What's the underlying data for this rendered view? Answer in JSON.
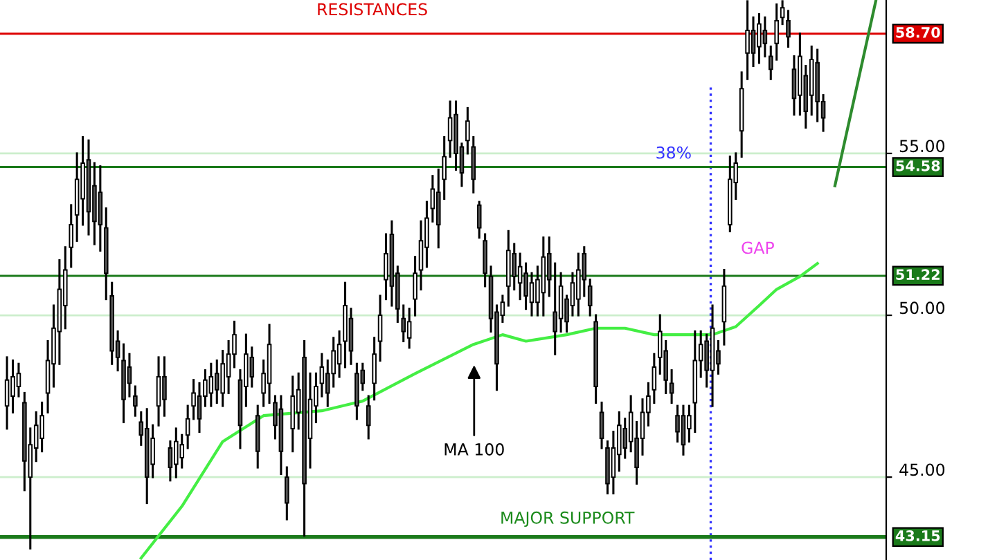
{
  "chart_data": {
    "type": "candlestick",
    "categories": [
      null,
      null,
      null,
      null,
      null,
      null,
      null,
      null,
      null,
      null,
      null,
      null,
      null,
      null,
      null,
      null,
      null,
      null,
      null,
      null,
      null,
      null,
      null,
      null,
      null,
      null,
      null,
      null,
      null,
      null,
      null,
      null,
      null,
      null,
      null,
      null,
      null,
      null,
      null,
      null,
      null,
      null,
      null,
      null,
      null,
      null,
      null,
      null,
      null,
      null,
      null,
      null,
      null,
      null,
      null,
      null,
      null,
      null,
      null,
      null,
      null,
      null,
      null,
      null,
      null,
      null,
      null,
      null,
      null,
      null,
      null,
      null,
      null,
      null,
      null,
      null,
      null,
      null,
      null,
      null,
      null,
      null,
      null,
      null,
      null,
      null,
      null,
      null,
      null,
      null,
      null,
      null,
      null,
      null,
      null,
      null,
      null,
      null,
      null,
      null,
      null,
      null,
      null,
      null,
      null,
      null,
      null,
      null,
      null,
      null,
      null,
      null,
      null,
      null,
      null,
      null,
      null,
      null,
      null,
      null,
      null,
      null,
      null,
      null,
      null,
      null,
      null,
      null,
      null,
      null,
      null,
      null,
      null,
      null,
      null,
      null,
      null,
      null,
      null,
      null,
      null,
      null,
      null,
      null,
      null,
      null,
      null,
      null,
      null,
      null,
      null
    ],
    "ohlc": [
      [
        47.2,
        48.7,
        46.5,
        48.0
      ],
      [
        47.5,
        48.6,
        47.0,
        48.1
      ],
      [
        47.8,
        48.5,
        47.5,
        48.2
      ],
      [
        47.3,
        47.6,
        44.6,
        45.5
      ],
      [
        45.0,
        46.5,
        42.8,
        46.0
      ],
      [
        45.9,
        47.0,
        45.5,
        46.6
      ],
      [
        46.2,
        47.3,
        45.8,
        46.9
      ],
      [
        47.6,
        49.2,
        47.0,
        48.6
      ],
      [
        48.5,
        50.3,
        47.8,
        49.6
      ],
      [
        49.5,
        51.7,
        48.5,
        50.8
      ],
      [
        50.3,
        52.1,
        49.6,
        51.4
      ],
      [
        52.1,
        53.4,
        51.5,
        52.8
      ],
      [
        53.1,
        55.0,
        52.3,
        54.2
      ],
      [
        53.6,
        55.5,
        52.8,
        54.7
      ],
      [
        54.8,
        55.4,
        52.5,
        53.2
      ],
      [
        54.0,
        54.7,
        52.2,
        52.9
      ],
      [
        53.8,
        54.6,
        52.0,
        52.8
      ],
      [
        52.7,
        53.3,
        50.5,
        51.3
      ],
      [
        50.6,
        51.0,
        48.5,
        48.9
      ],
      [
        49.2,
        49.5,
        48.3,
        48.7
      ],
      [
        48.6,
        49.1,
        46.7,
        47.4
      ],
      [
        48.4,
        48.8,
        47.5,
        47.9
      ],
      [
        47.5,
        47.8,
        46.9,
        47.2
      ],
      [
        46.7,
        47.0,
        46.0,
        46.3
      ],
      [
        46.5,
        47.1,
        44.2,
        45.0
      ],
      [
        45.4,
        46.6,
        45.0,
        46.2
      ],
      [
        47.2,
        48.7,
        46.6,
        48.1
      ],
      [
        48.1,
        48.7,
        46.9,
        47.4
      ],
      [
        45.9,
        46.1,
        44.9,
        45.3
      ],
      [
        45.4,
        46.5,
        45.0,
        46.1
      ],
      [
        45.6,
        46.3,
        45.3,
        46.0
      ],
      [
        46.3,
        47.2,
        45.9,
        46.8
      ],
      [
        47.2,
        48.0,
        46.8,
        47.6
      ],
      [
        47.5,
        47.9,
        46.4,
        46.8
      ],
      [
        47.5,
        48.3,
        47.2,
        48.0
      ],
      [
        47.6,
        48.5,
        47.2,
        48.1
      ],
      [
        48.2,
        48.6,
        47.3,
        47.7
      ],
      [
        47.6,
        48.9,
        47.2,
        48.5
      ],
      [
        48.1,
        49.2,
        47.6,
        48.8
      ],
      [
        48.8,
        49.8,
        48.4,
        49.4
      ],
      [
        48.0,
        48.3,
        45.9,
        46.6
      ],
      [
        47.8,
        49.4,
        47.2,
        48.8
      ],
      [
        48.7,
        49.0,
        47.8,
        48.1
      ],
      [
        46.9,
        47.2,
        45.3,
        45.8
      ],
      [
        47.6,
        48.6,
        47.2,
        48.2
      ],
      [
        47.9,
        49.7,
        47.3,
        49.1
      ],
      [
        47.3,
        47.5,
        46.2,
        46.6
      ],
      [
        47.1,
        47.5,
        45.1,
        45.8
      ],
      [
        45.0,
        45.3,
        43.7,
        44.2
      ],
      [
        46.5,
        48.1,
        45.8,
        47.5
      ],
      [
        47.0,
        48.2,
        46.5,
        47.7
      ],
      [
        48.7,
        49.2,
        43.2,
        44.8
      ],
      [
        46.2,
        48.2,
        45.3,
        47.4
      ],
      [
        47.2,
        48.2,
        46.7,
        47.8
      ],
      [
        47.9,
        48.8,
        47.5,
        48.4
      ],
      [
        48.2,
        48.6,
        47.2,
        47.6
      ],
      [
        48.2,
        49.3,
        47.8,
        48.9
      ],
      [
        48.5,
        49.5,
        48.1,
        49.1
      ],
      [
        49.2,
        51.0,
        48.4,
        50.3
      ],
      [
        49.9,
        50.2,
        48.5,
        48.9
      ],
      [
        48.2,
        48.5,
        46.8,
        47.2
      ],
      [
        48.3,
        48.5,
        47.7,
        47.9
      ],
      [
        47.2,
        47.5,
        46.2,
        46.6
      ],
      [
        47.9,
        49.3,
        47.4,
        48.8
      ],
      [
        49.2,
        50.6,
        48.6,
        50.0
      ],
      [
        51.1,
        52.5,
        50.5,
        51.9
      ],
      [
        52.5,
        52.9,
        50.3,
        50.9
      ],
      [
        51.3,
        51.5,
        49.8,
        50.2
      ],
      [
        49.9,
        50.3,
        49.2,
        49.5
      ],
      [
        49.3,
        50.2,
        49.0,
        49.8
      ],
      [
        50.5,
        51.8,
        50.0,
        51.3
      ],
      [
        51.4,
        52.9,
        50.8,
        52.3
      ],
      [
        52.1,
        53.5,
        51.5,
        53.0
      ],
      [
        53.3,
        54.3,
        52.9,
        53.9
      ],
      [
        53.8,
        54.5,
        52.1,
        52.8
      ],
      [
        54.2,
        55.5,
        53.6,
        54.9
      ],
      [
        55.4,
        56.6,
        54.9,
        56.1
      ],
      [
        56.2,
        56.6,
        54.5,
        55.0
      ],
      [
        55.2,
        55.3,
        54.0,
        54.4
      ],
      [
        55.4,
        56.4,
        55.0,
        56.0
      ],
      [
        55.2,
        55.5,
        53.8,
        54.2
      ],
      [
        53.4,
        53.5,
        52.4,
        52.7
      ],
      [
        52.3,
        52.5,
        50.9,
        51.3
      ],
      [
        51.2,
        51.5,
        49.5,
        49.9
      ],
      [
        50.1,
        50.3,
        47.7,
        48.5
      ],
      [
        50.0,
        50.6,
        49.8,
        50.4
      ],
      [
        50.9,
        52.6,
        50.3,
        52.0
      ],
      [
        51.9,
        52.2,
        50.8,
        51.2
      ],
      [
        51.0,
        51.9,
        50.5,
        51.5
      ],
      [
        51.3,
        51.6,
        50.2,
        50.6
      ],
      [
        50.4,
        51.3,
        50.0,
        51.0
      ],
      [
        50.4,
        51.5,
        50.0,
        51.1
      ],
      [
        50.7,
        52.4,
        50.0,
        51.8
      ],
      [
        51.9,
        52.4,
        50.6,
        51.1
      ],
      [
        50.1,
        51.6,
        48.8,
        49.5
      ],
      [
        49.9,
        51.3,
        49.5,
        50.9
      ],
      [
        50.5,
        50.6,
        49.5,
        49.8
      ],
      [
        50.3,
        51.3,
        50.0,
        51.0
      ],
      [
        50.5,
        51.9,
        50.0,
        51.4
      ],
      [
        51.9,
        52.1,
        50.6,
        51.1
      ],
      [
        50.9,
        51.1,
        50.0,
        50.3
      ],
      [
        49.8,
        50.0,
        47.3,
        47.8
      ],
      [
        47.0,
        47.3,
        45.9,
        46.2
      ],
      [
        45.9,
        46.1,
        44.5,
        44.8
      ],
      [
        45.0,
        46.4,
        44.5,
        45.9
      ],
      [
        45.7,
        47.0,
        45.2,
        46.6
      ],
      [
        46.5,
        46.8,
        45.6,
        45.9
      ],
      [
        46.1,
        47.5,
        45.8,
        47.0
      ],
      [
        46.2,
        46.7,
        44.8,
        45.3
      ],
      [
        46.2,
        47.4,
        45.7,
        47.0
      ],
      [
        47.0,
        47.9,
        46.6,
        47.5
      ],
      [
        47.7,
        48.8,
        47.3,
        48.4
      ],
      [
        48.7,
        50.0,
        48.2,
        49.5
      ],
      [
        48.9,
        49.2,
        47.6,
        48.0
      ],
      [
        47.9,
        48.3,
        47.3,
        47.6
      ],
      [
        46.9,
        47.2,
        46.1,
        46.4
      ],
      [
        46.9,
        47.2,
        45.7,
        46.0
      ],
      [
        46.5,
        47.2,
        46.1,
        46.9
      ],
      [
        47.3,
        49.5,
        46.4,
        48.6
      ],
      [
        48.6,
        49.5,
        48.1,
        49.1
      ],
      [
        49.2,
        49.4,
        47.8,
        48.3
      ],
      [
        48.3,
        50.3,
        47.2,
        49.6
      ],
      [
        48.9,
        49.2,
        48.2,
        48.5
      ],
      [
        49.8,
        51.4,
        49.1,
        50.9
      ],
      [
        52.8,
        54.9,
        52.6,
        54.2
      ],
      [
        54.1,
        55.0,
        53.6,
        54.7
      ],
      [
        55.7,
        57.5,
        54.9,
        57.0
      ],
      [
        58.1,
        59.7,
        57.3,
        58.8
      ],
      [
        58.8,
        59.2,
        57.7,
        58.1
      ],
      [
        58.3,
        59.3,
        57.8,
        59.0
      ],
      [
        58.8,
        59.2,
        58.0,
        58.4
      ],
      [
        58.0,
        58.3,
        57.3,
        57.6
      ],
      [
        58.4,
        59.6,
        57.9,
        59.1
      ],
      [
        59.2,
        59.7,
        59.0,
        59.5
      ],
      [
        59.1,
        59.4,
        58.3,
        58.6
      ],
      [
        57.6,
        58.0,
        56.2,
        56.7
      ],
      [
        56.8,
        58.7,
        56.2,
        58.0
      ],
      [
        57.4,
        57.7,
        55.8,
        56.3
      ],
      [
        56.8,
        58.3,
        56.2,
        57.9
      ],
      [
        57.8,
        58.2,
        56.0,
        56.6
      ],
      [
        56.6,
        56.8,
        55.7,
        56.1
      ],
      null,
      null,
      null,
      null,
      null,
      null,
      null,
      null,
      null,
      null
    ],
    "color": "#000000",
    "series": [
      {
        "type": "line",
        "color": "#44ee44",
        "values": [
          null,
          null,
          null,
          null,
          null,
          null,
          null,
          null,
          null,
          null,
          null,
          null,
          null,
          null,
          null,
          null,
          null,
          null,
          null,
          null,
          null,
          null,
          null,
          42.5,
          null,
          null,
          null,
          null,
          null,
          null,
          44.1,
          null,
          null,
          null,
          null,
          null,
          null,
          46.1,
          null,
          null,
          null,
          null,
          null,
          null,
          46.9,
          null,
          null,
          null,
          null,
          null,
          null,
          null,
          null,
          null,
          47.05,
          null,
          null,
          null,
          null,
          null,
          null,
          47.35,
          null,
          null,
          null,
          null,
          null,
          null,
          null,
          null,
          48.2,
          null,
          null,
          null,
          null,
          null,
          null,
          null,
          null,
          null,
          49.1,
          null,
          null,
          null,
          null,
          49.4,
          null,
          null,
          null,
          49.2,
          null,
          null,
          null,
          null,
          null,
          null,
          49.4,
          null,
          null,
          null,
          null,
          49.6,
          null,
          null,
          null,
          null,
          49.6,
          null,
          null,
          null,
          null,
          49.4,
          null,
          null,
          null,
          null,
          49.4,
          null,
          null,
          null,
          null,
          49.4,
          null,
          null,
          null,
          49.65,
          null,
          null,
          null,
          50.3,
          null,
          null,
          50.8,
          null,
          null,
          null,
          51.2,
          null,
          null,
          51.6,
          null,
          null,
          null,
          null,
          null,
          null,
          null,
          null,
          null,
          null,
          null
        ]
      },
      {
        "type": "line",
        "color": "#2e8b2e",
        "values": [
          null,
          null,
          null,
          null,
          null,
          null,
          null,
          null,
          null,
          null,
          null,
          null,
          null,
          null,
          null,
          null,
          null,
          null,
          null,
          null,
          null,
          null,
          null,
          null,
          null,
          null,
          null,
          null,
          null,
          null,
          null,
          null,
          null,
          null,
          null,
          null,
          null,
          null,
          null,
          null,
          null,
          null,
          null,
          null,
          null,
          null,
          null,
          null,
          null,
          null,
          null,
          null,
          null,
          null,
          null,
          null,
          null,
          null,
          null,
          null,
          null,
          null,
          null,
          null,
          null,
          null,
          null,
          null,
          null,
          null,
          null,
          null,
          null,
          null,
          null,
          null,
          null,
          null,
          null,
          null,
          null,
          null,
          null,
          null,
          null,
          null,
          null,
          null,
          null,
          null,
          null,
          null,
          null,
          null,
          null,
          null,
          null,
          null,
          null,
          null,
          null,
          null,
          null,
          null,
          null,
          null,
          null,
          null,
          null,
          null,
          null,
          null,
          null,
          null,
          null,
          null,
          null,
          null,
          null,
          null,
          null,
          null,
          null,
          null,
          null,
          null,
          null,
          null,
          null,
          null,
          null,
          null,
          null,
          null,
          null,
          null,
          null,
          null,
          null,
          null,
          null,
          null,
          54.0,
          null,
          null,
          null,
          null,
          null,
          null,
          59.7,
          null
        ]
      }
    ],
    "ylim": [
      42.44,
      59.74
    ],
    "yticks": [
      {
        "value": 45,
        "label": "45.00"
      },
      {
        "value": 50,
        "label": "50.00"
      },
      {
        "value": 55,
        "label": "55.00"
      }
    ],
    "grid": "y",
    "ref_lines": [
      {
        "axis": "y",
        "value": 58.7,
        "label": "58.70",
        "color": "#dd0000"
      },
      {
        "axis": "y",
        "value": 54.58,
        "label": "54.58",
        "color": "#1a7a1a"
      },
      {
        "axis": "y",
        "value": 51.22,
        "label": "51.22",
        "color": "#1a7a1a"
      },
      {
        "axis": "y",
        "value": 43.15,
        "label": "43.15",
        "color": "#1a7a1a"
      }
    ],
    "annotations": [
      "RESISTANCES",
      "38%",
      "GAP",
      "MA 100",
      "MAJOR SUPPORT"
    ]
  }
}
